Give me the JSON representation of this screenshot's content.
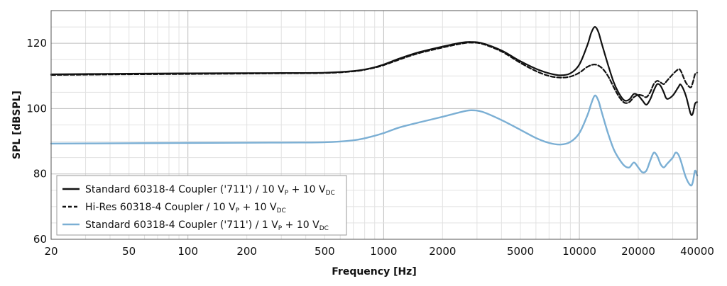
{
  "chart_data": {
    "type": "line",
    "xlabel": "Frequency [Hz]",
    "ylabel": "SPL [dBSPL]",
    "x_scale": "log",
    "xlim": [
      20,
      40000
    ],
    "ylim": [
      60,
      130
    ],
    "grid": true,
    "legend_placement": "bottom-left",
    "x_ticks": [
      {
        "value": 20,
        "label": "20"
      },
      {
        "value": 50,
        "label": "50"
      },
      {
        "value": 100,
        "label": "100"
      },
      {
        "value": 200,
        "label": "200"
      },
      {
        "value": 500,
        "label": "500"
      },
      {
        "value": 1000,
        "label": "1000"
      },
      {
        "value": 2000,
        "label": "2000"
      },
      {
        "value": 5000,
        "label": "5000"
      },
      {
        "value": 10000,
        "label": "10000"
      },
      {
        "value": 20000,
        "label": "20000"
      },
      {
        "value": 40000,
        "label": "40000"
      }
    ],
    "y_ticks": [
      {
        "value": 60,
        "label": "60"
      },
      {
        "value": 80,
        "label": "80"
      },
      {
        "value": 100,
        "label": "100"
      },
      {
        "value": 120,
        "label": "120"
      }
    ],
    "series": [
      {
        "legend": {
          "text": "Standard 60318-4 Coupler ('711') / 10 V",
          "sub1": "P",
          "mid": " + 10 V",
          "sub2": "DC"
        },
        "color": "#111111",
        "dash": "solid",
        "points": [
          [
            20,
            110.5
          ],
          [
            50,
            110.7
          ],
          [
            100,
            110.8
          ],
          [
            300,
            110.9
          ],
          [
            500,
            111.0
          ],
          [
            700,
            111.5
          ],
          [
            850,
            112.3
          ],
          [
            1000,
            113.5
          ],
          [
            1200,
            115.3
          ],
          [
            1500,
            117.2
          ],
          [
            2000,
            119.0
          ],
          [
            2500,
            120.2
          ],
          [
            2800,
            120.4
          ],
          [
            3200,
            120.0
          ],
          [
            4000,
            117.8
          ],
          [
            5000,
            114.5
          ],
          [
            6000,
            112.2
          ],
          [
            7000,
            110.8
          ],
          [
            8000,
            110.2
          ],
          [
            9000,
            110.8
          ],
          [
            10000,
            113.5
          ],
          [
            11000,
            119.5
          ],
          [
            11500,
            123.2
          ],
          [
            12000,
            125.0
          ],
          [
            12500,
            123.5
          ],
          [
            13000,
            120.0
          ],
          [
            14000,
            113.5
          ],
          [
            15000,
            108.0
          ],
          [
            16000,
            104.5
          ],
          [
            17000,
            102.5
          ],
          [
            18000,
            102.8
          ],
          [
            19000,
            104.5
          ],
          [
            20000,
            104.0
          ],
          [
            21000,
            102.5
          ],
          [
            22000,
            101.2
          ],
          [
            23000,
            102.8
          ],
          [
            24000,
            105.5
          ],
          [
            25000,
            107.5
          ],
          [
            26000,
            107.0
          ],
          [
            27000,
            105.0
          ],
          [
            28000,
            103.0
          ],
          [
            30000,
            104.0
          ],
          [
            32000,
            106.5
          ],
          [
            33000,
            107.3
          ],
          [
            35000,
            104.0
          ],
          [
            37000,
            98.5
          ],
          [
            38000,
            98.5
          ],
          [
            39000,
            101.5
          ],
          [
            40000,
            102.0
          ]
        ]
      },
      {
        "legend": {
          "text": "Hi-Res 60318-4 Coupler / 10 V",
          "sub1": "P",
          "mid": " + 10 V",
          "sub2": "DC"
        },
        "color": "#111111",
        "dash": "dashed",
        "points": [
          [
            20,
            110.3
          ],
          [
            50,
            110.5
          ],
          [
            100,
            110.6
          ],
          [
            300,
            110.8
          ],
          [
            500,
            110.9
          ],
          [
            700,
            111.4
          ],
          [
            850,
            112.2
          ],
          [
            1000,
            113.3
          ],
          [
            1200,
            115.0
          ],
          [
            1500,
            116.9
          ],
          [
            2000,
            118.7
          ],
          [
            2500,
            119.9
          ],
          [
            2800,
            120.2
          ],
          [
            3200,
            119.8
          ],
          [
            4000,
            117.5
          ],
          [
            5000,
            114.0
          ],
          [
            6000,
            111.5
          ],
          [
            7000,
            110.0
          ],
          [
            8000,
            109.5
          ],
          [
            9000,
            109.8
          ],
          [
            10000,
            111.0
          ],
          [
            11000,
            112.8
          ],
          [
            12000,
            113.5
          ],
          [
            13000,
            112.5
          ],
          [
            14000,
            110.0
          ],
          [
            15000,
            106.5
          ],
          [
            16000,
            103.5
          ],
          [
            17000,
            101.8
          ],
          [
            18000,
            102.0
          ],
          [
            19000,
            103.5
          ],
          [
            20000,
            104.2
          ],
          [
            21000,
            104.0
          ],
          [
            22000,
            103.5
          ],
          [
            23000,
            105.0
          ],
          [
            24000,
            107.5
          ],
          [
            25000,
            108.5
          ],
          [
            26000,
            108.0
          ],
          [
            27000,
            107.5
          ],
          [
            28000,
            108.5
          ],
          [
            30000,
            110.5
          ],
          [
            32000,
            112.0
          ],
          [
            33000,
            111.5
          ],
          [
            35000,
            108.0
          ],
          [
            37000,
            106.5
          ],
          [
            38000,
            108.0
          ],
          [
            39000,
            110.5
          ],
          [
            40000,
            111.0
          ]
        ]
      },
      {
        "legend": {
          "text": "Standard 60318-4 Coupler ('711') / 1 V",
          "sub1": "P",
          "mid": " + 10 V",
          "sub2": "DC"
        },
        "color": "#7bafd4",
        "dash": "solid",
        "points": [
          [
            20,
            89.3
          ],
          [
            50,
            89.4
          ],
          [
            100,
            89.5
          ],
          [
            300,
            89.6
          ],
          [
            500,
            89.7
          ],
          [
            700,
            90.3
          ],
          [
            850,
            91.3
          ],
          [
            1000,
            92.5
          ],
          [
            1200,
            94.2
          ],
          [
            1500,
            95.7
          ],
          [
            2000,
            97.5
          ],
          [
            2500,
            99.0
          ],
          [
            2800,
            99.5
          ],
          [
            3200,
            99.0
          ],
          [
            4000,
            96.5
          ],
          [
            5000,
            93.5
          ],
          [
            6000,
            91.0
          ],
          [
            7000,
            89.5
          ],
          [
            8000,
            89.0
          ],
          [
            9000,
            89.8
          ],
          [
            10000,
            92.5
          ],
          [
            11000,
            98.0
          ],
          [
            11500,
            101.5
          ],
          [
            12000,
            104.0
          ],
          [
            12500,
            102.5
          ],
          [
            13000,
            99.0
          ],
          [
            14000,
            92.5
          ],
          [
            15000,
            87.5
          ],
          [
            16000,
            84.5
          ],
          [
            17000,
            82.5
          ],
          [
            18000,
            82.0
          ],
          [
            19000,
            83.5
          ],
          [
            20000,
            82.0
          ],
          [
            21000,
            80.5
          ],
          [
            22000,
            81.0
          ],
          [
            23000,
            84.0
          ],
          [
            24000,
            86.5
          ],
          [
            25000,
            85.5
          ],
          [
            26000,
            83.0
          ],
          [
            27000,
            82.0
          ],
          [
            28000,
            83.0
          ],
          [
            30000,
            85.0
          ],
          [
            31000,
            86.5
          ],
          [
            32000,
            86.0
          ],
          [
            33000,
            84.0
          ],
          [
            35000,
            79.0
          ],
          [
            37000,
            76.5
          ],
          [
            38000,
            77.5
          ],
          [
            39000,
            81.0
          ],
          [
            40000,
            79.5
          ]
        ]
      }
    ]
  }
}
